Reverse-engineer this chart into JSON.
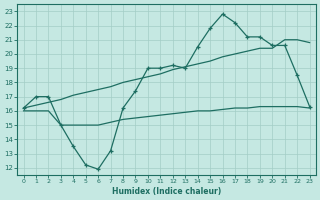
{
  "xlabel": "Humidex (Indice chaleur)",
  "bg_color": "#c5e8e2",
  "grid_color": "#a3cdc6",
  "line_color": "#1e6e62",
  "xlim": [
    -0.5,
    23.5
  ],
  "ylim": [
    11.5,
    23.5
  ],
  "xticks": [
    0,
    1,
    2,
    3,
    4,
    5,
    6,
    7,
    8,
    9,
    10,
    11,
    12,
    13,
    14,
    15,
    16,
    17,
    18,
    19,
    20,
    21,
    22,
    23
  ],
  "yticks": [
    12,
    13,
    14,
    15,
    16,
    17,
    18,
    19,
    20,
    21,
    22,
    23
  ],
  "curve_jagged_x": [
    0,
    1,
    2,
    3,
    4,
    5,
    6,
    7,
    8,
    9,
    10,
    11,
    12,
    13,
    14,
    15,
    16,
    17,
    18,
    19,
    20,
    21,
    22,
    23
  ],
  "curve_jagged_y": [
    16.2,
    17.0,
    17.0,
    15.0,
    13.5,
    12.2,
    11.9,
    13.2,
    16.2,
    17.4,
    19.0,
    19.0,
    19.2,
    19.0,
    20.5,
    21.8,
    22.8,
    22.2,
    21.2,
    21.2,
    20.6,
    20.6,
    18.5,
    16.3
  ],
  "curve_diagonal_x": [
    0,
    1,
    2,
    3,
    4,
    5,
    6,
    7,
    8,
    9,
    10,
    11,
    12,
    13,
    14,
    15,
    16,
    17,
    18,
    19,
    20,
    21,
    22,
    23
  ],
  "curve_diagonal_y": [
    16.2,
    16.4,
    16.6,
    16.8,
    17.1,
    17.3,
    17.5,
    17.7,
    18.0,
    18.2,
    18.4,
    18.6,
    18.9,
    19.1,
    19.3,
    19.5,
    19.8,
    20.0,
    20.2,
    20.4,
    20.4,
    21.0,
    21.0,
    20.8
  ],
  "curve_flat_x": [
    0,
    1,
    2,
    3,
    4,
    5,
    6,
    7,
    8,
    9,
    10,
    11,
    12,
    13,
    14,
    15,
    16,
    17,
    18,
    19,
    20,
    21,
    22,
    23
  ],
  "curve_flat_y": [
    16.0,
    16.0,
    16.0,
    15.0,
    15.0,
    15.0,
    15.0,
    15.2,
    15.4,
    15.5,
    15.6,
    15.7,
    15.8,
    15.9,
    16.0,
    16.0,
    16.1,
    16.2,
    16.2,
    16.3,
    16.3,
    16.3,
    16.3,
    16.2
  ]
}
